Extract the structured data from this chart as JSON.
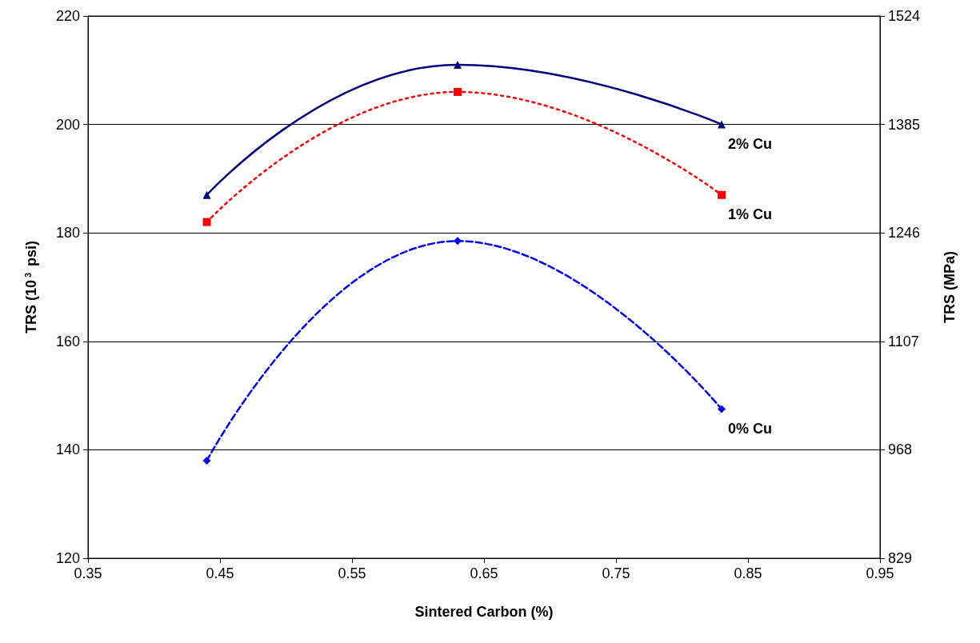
{
  "chart_data": {
    "type": "line",
    "xlabel": "Sintered Carbon (%)",
    "ylabel": "TRS (10$^{3}$ psi)",
    "y2label": "TRS (MPa)",
    "xlim": [
      0.35,
      0.95
    ],
    "xticks": [
      0.35,
      0.45,
      0.55,
      0.65,
      0.75,
      0.85,
      0.95
    ],
    "ylim": [
      120,
      220
    ],
    "yticks": [
      120,
      140,
      160,
      180,
      200,
      220
    ],
    "y2lim": [
      829,
      1524
    ],
    "y2ticks": [
      829,
      968,
      1107,
      1246,
      1385,
      1524
    ],
    "grid": "y",
    "legend": false,
    "series": [
      {
        "name": "2% Cu",
        "color": "#000080",
        "x": [
          0.44,
          0.63,
          0.83
        ],
        "values": [
          187,
          211,
          200
        ],
        "marker": "triangle",
        "line_style": "solid"
      },
      {
        "name": "1% Cu",
        "color": "#ff0000",
        "x": [
          0.44,
          0.63,
          0.83
        ],
        "values": [
          182,
          206,
          187
        ],
        "marker": "square",
        "line_style": "dotted"
      },
      {
        "name": "0% Cu",
        "color": "#0000ff",
        "x": [
          0.44,
          0.63,
          0.83
        ],
        "values": [
          138,
          178.5,
          147.5
        ],
        "marker": "diamond",
        "line_style": "dashed"
      }
    ]
  }
}
